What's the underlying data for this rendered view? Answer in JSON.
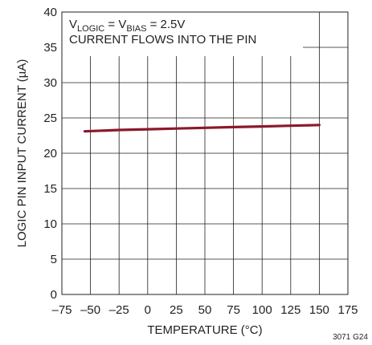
{
  "chart_data": {
    "type": "line",
    "title": "",
    "xlabel": "TEMPERATURE (°C)",
    "ylabel": "LOGIC PIN INPUT CURRENT (µA)",
    "xlim": [
      -75,
      175
    ],
    "ylim": [
      0,
      40
    ],
    "x_ticks": [
      "–75",
      "–50",
      "–25",
      "0",
      "25",
      "50",
      "75",
      "100",
      "125",
      "150",
      "175"
    ],
    "y_ticks": [
      "0",
      "5",
      "10",
      "15",
      "20",
      "25",
      "30",
      "35",
      "40"
    ],
    "grid": true,
    "series": [
      {
        "color": "#8b1a2b",
        "points": [
          {
            "x": -55,
            "y": 23.1
          },
          {
            "x": -25,
            "y": 23.3
          },
          {
            "x": 0,
            "y": 23.4
          },
          {
            "x": 25,
            "y": 23.5
          },
          {
            "x": 50,
            "y": 23.6
          },
          {
            "x": 75,
            "y": 23.7
          },
          {
            "x": 100,
            "y": 23.8
          },
          {
            "x": 125,
            "y": 23.9
          },
          {
            "x": 150,
            "y": 24.0
          }
        ]
      }
    ],
    "annotation": {
      "line1": {
        "v1": "V",
        "sub1": "LOGIC",
        "mid": " = V",
        "sub2": "BIAS",
        "end": " = 2.5V"
      },
      "line2": "CURRENT FLOWS INTO THE PIN"
    },
    "figure_id": "3071 G24"
  }
}
